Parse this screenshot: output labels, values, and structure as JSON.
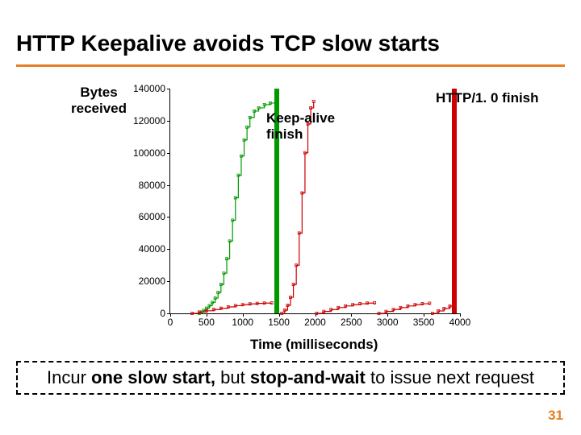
{
  "title": "HTTP Keepalive avoids TCP slow starts",
  "ylabel_l1": "Bytes",
  "ylabel_l2": "received",
  "xlabel": "Time (milliseconds)",
  "annotations": {
    "keepalive_l1": "Keep-alive",
    "keepalive_l2": "finish",
    "http10": "HTTP/1. 0 finish"
  },
  "footnote_pre": "Incur ",
  "footnote_b1": "one slow start,",
  "footnote_mid": " but ",
  "footnote_b2": "stop-and-wait",
  "footnote_post": " to issue next request",
  "page_number": "31",
  "chart": {
    "xlim": [
      0,
      4000
    ],
    "ylim": [
      0,
      140000
    ],
    "xticks": [
      0,
      500,
      1000,
      1500,
      2000,
      2500,
      3000,
      3500,
      4000
    ],
    "yticks": [
      0,
      20000,
      40000,
      60000,
      80000,
      100000,
      120000,
      140000
    ],
    "colors": {
      "axis": "#000000",
      "green": "#009900",
      "red": "#cc0000",
      "bg": "#ffffff"
    },
    "finish_lines": {
      "keepalive_x": 1470,
      "http10_x": 3920
    },
    "series_green": [
      [
        400,
        0
      ],
      [
        430,
        800
      ],
      [
        460,
        1800
      ],
      [
        500,
        3200
      ],
      [
        540,
        4800
      ],
      [
        580,
        6800
      ],
      [
        620,
        9500
      ],
      [
        660,
        13000
      ],
      [
        700,
        18000
      ],
      [
        740,
        25000
      ],
      [
        780,
        34000
      ],
      [
        820,
        45000
      ],
      [
        860,
        58000
      ],
      [
        900,
        72000
      ],
      [
        940,
        86000
      ],
      [
        980,
        98000
      ],
      [
        1020,
        108000
      ],
      [
        1060,
        116000
      ],
      [
        1100,
        122000
      ],
      [
        1160,
        126000
      ],
      [
        1220,
        128000
      ],
      [
        1300,
        130000
      ],
      [
        1380,
        131000
      ],
      [
        1460,
        132000
      ]
    ],
    "series_red_main": [
      [
        1540,
        0
      ],
      [
        1580,
        2000
      ],
      [
        1620,
        5000
      ],
      [
        1660,
        10000
      ],
      [
        1700,
        18000
      ],
      [
        1740,
        30000
      ],
      [
        1780,
        50000
      ],
      [
        1820,
        75000
      ],
      [
        1860,
        100000
      ],
      [
        1900,
        118000
      ],
      [
        1940,
        128000
      ],
      [
        1980,
        132000
      ]
    ],
    "series_red_small": [
      [
        [
          300,
          0
        ],
        [
          400,
          800
        ],
        [
          500,
          1600
        ],
        [
          600,
          2400
        ],
        [
          700,
          3200
        ],
        [
          800,
          4000
        ],
        [
          900,
          4800
        ],
        [
          1000,
          5400
        ],
        [
          1100,
          5900
        ],
        [
          1200,
          6200
        ],
        [
          1300,
          6400
        ],
        [
          1400,
          6500
        ]
      ],
      [
        [
          2020,
          0
        ],
        [
          2120,
          1200
        ],
        [
          2220,
          2400
        ],
        [
          2320,
          3600
        ],
        [
          2420,
          4600
        ],
        [
          2520,
          5400
        ],
        [
          2620,
          6000
        ],
        [
          2720,
          6400
        ],
        [
          2820,
          6600
        ]
      ],
      [
        [
          2880,
          0
        ],
        [
          2980,
          1200
        ],
        [
          3080,
          2400
        ],
        [
          3180,
          3600
        ],
        [
          3280,
          4600
        ],
        [
          3380,
          5400
        ],
        [
          3480,
          6000
        ],
        [
          3580,
          6300
        ]
      ],
      [
        [
          3620,
          0
        ],
        [
          3700,
          1500
        ],
        [
          3780,
          3000
        ],
        [
          3860,
          4500
        ],
        [
          3920,
          5500
        ]
      ]
    ],
    "marker_size": 3,
    "line_width": 1.2,
    "font_size_ticks": 12
  }
}
